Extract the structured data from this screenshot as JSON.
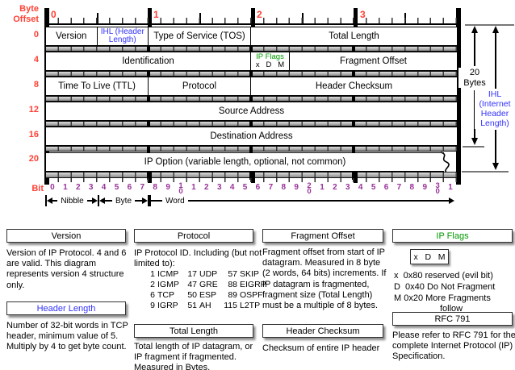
{
  "colors": {
    "red": "#ff4136",
    "purple": "#993399",
    "green": "#009900",
    "blue": "#3333ff"
  },
  "diagram": {
    "byte_offset_label": "Byte\nOffset",
    "bit_label": "Bit",
    "byte_labels": [
      "0",
      "4",
      "8",
      "12",
      "16",
      "20"
    ],
    "top_ruler_labels": [
      "0",
      "1",
      "2",
      "3"
    ],
    "bit_ruler_labels": [
      "0",
      "1",
      "2",
      "3",
      "4",
      "5",
      "6",
      "7",
      "8",
      "9",
      "1\n0",
      "1",
      "2",
      "3",
      "4",
      "5",
      "6",
      "7",
      "8",
      "9",
      "2\n0",
      "1",
      "2",
      "3",
      "4",
      "5",
      "6",
      "7",
      "8",
      "9",
      "3\n0",
      "1"
    ],
    "scale_markers": {
      "nibble": "Nibble",
      "byte": "Byte",
      "word": "Word"
    },
    "rows": {
      "row0": {
        "version": "Version",
        "ihl": "IHL (Header\nLength)",
        "tos": "Type of Service (TOS)",
        "total_length": "Total Length"
      },
      "row4": {
        "identification": "Identification",
        "ip_flags_title": "IP Flags",
        "ip_flags_bits": "x   D   M",
        "fragment_offset": "Fragment Offset"
      },
      "row8": {
        "ttl": "Time To Live (TTL)",
        "protocol": "Protocol",
        "header_checksum": "Header Checksum"
      },
      "row12": {
        "source_address": "Source Address"
      },
      "row16": {
        "destination_address": "Destination Address"
      },
      "row20": {
        "ip_option": "IP Option (variable length, optional, not common)"
      }
    },
    "annotations": {
      "twenty_bytes": "20\nBytes",
      "ihl_side": "IHL\n(Internet\nHeader\nLength)"
    }
  },
  "cards": {
    "version": {
      "title": "Version",
      "body": "Version of IP Protocol.  4 and 6 are valid.  This diagram represents version 4 structure only."
    },
    "header_length": {
      "title": "Header Length",
      "body": "Number of 32-bit words in TCP header, minimum value of 5.  Multiply by 4 to get byte count."
    },
    "protocol": {
      "title": "Protocol",
      "intro": "IP Protocol ID.  Including (but not limited to):",
      "table": [
        [
          "1",
          "ICMP"
        ],
        [
          "17",
          "UDP"
        ],
        [
          "57",
          "SKIP"
        ],
        [
          "2",
          "IGMP"
        ],
        [
          "47",
          "GRE"
        ],
        [
          "88",
          "EIGRP"
        ],
        [
          "6",
          "TCP"
        ],
        [
          "50",
          "ESP"
        ],
        [
          "89",
          "OSPF"
        ],
        [
          "9",
          "IGRP"
        ],
        [
          "51",
          "AH"
        ],
        [
          "115",
          "L2TP"
        ]
      ]
    },
    "total_length": {
      "title": "Total Length",
      "body": "Total length of IP datagram, or IP fragment if fragmented.  Measured in Bytes."
    },
    "fragment_offset": {
      "title": "Fragment Offset",
      "body": "Fragment offset from start of IP datagram.  Measured in 8 byte (2 words, 64 bits) increments.  If IP datagram is fragmented, fragment size (Total Length) must be a multiple of 8 bytes."
    },
    "header_checksum": {
      "title": "Header Checksum",
      "body": "Checksum of entire IP header"
    },
    "ip_flags": {
      "title": "IP Flags",
      "box": "x   D   M",
      "lines": [
        "x  0x80 reserved (evil bit)",
        "D  0x40 Do Not Fragment",
        "M 0x20 More Fragments",
        "follow"
      ]
    },
    "rfc": {
      "title": "RFC 791",
      "body": "Please refer to RFC 791 for the complete Internet Protocol (IP) Specification."
    }
  }
}
